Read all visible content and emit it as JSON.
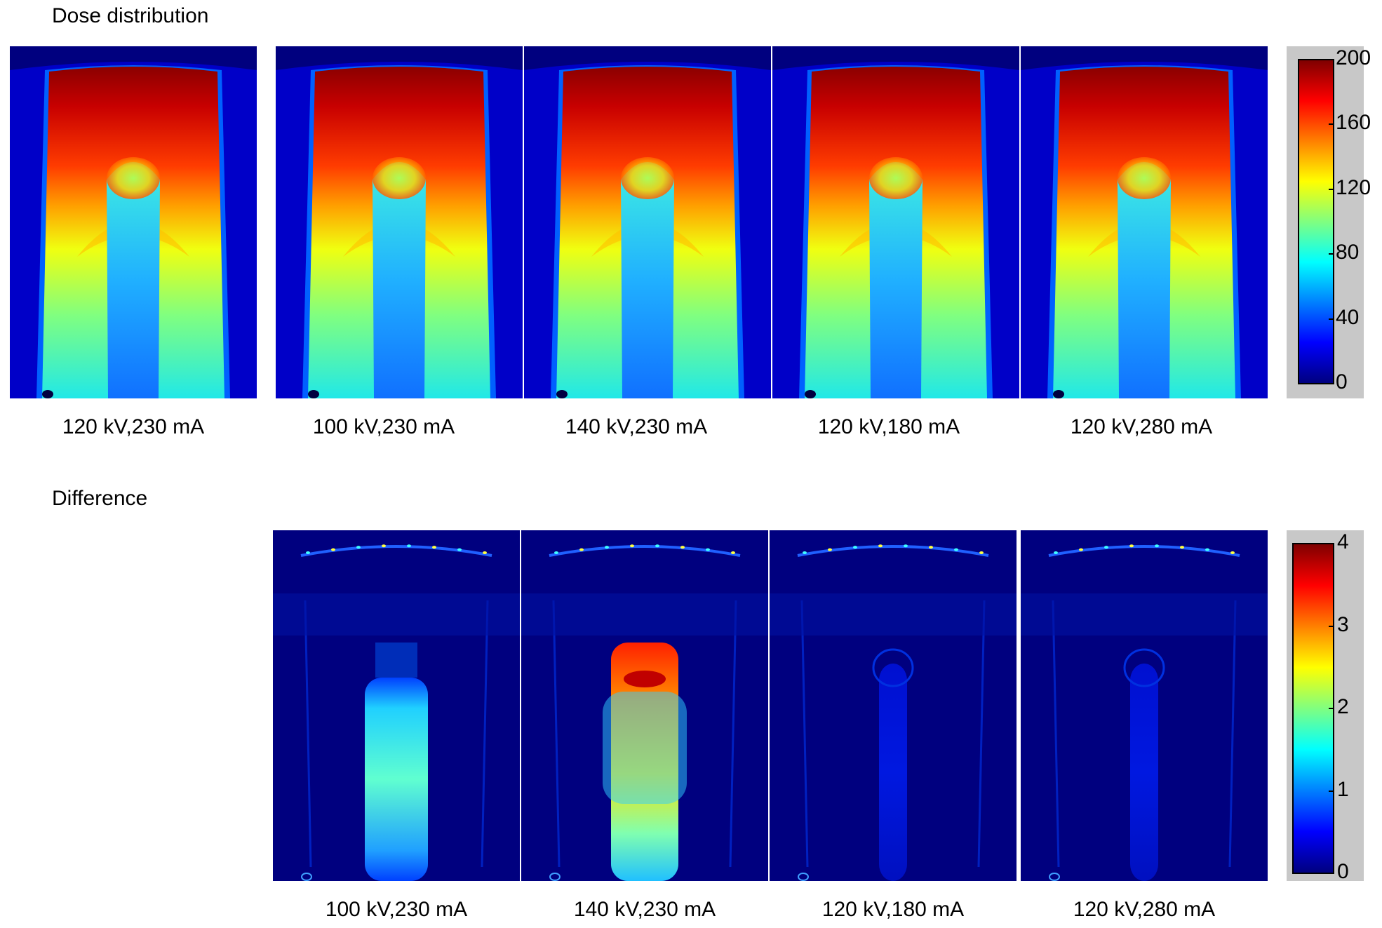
{
  "dose": {
    "title": "Dose distribution",
    "captions": [
      "120 kV,230 mA",
      "100 kV,230 mA",
      "140 kV,230 mA",
      "120 kV,180 mA",
      "120 kV,280 mA"
    ],
    "colorbar": {
      "ticks": [
        "200",
        "160",
        "120",
        "80",
        "40",
        "0"
      ],
      "range": [
        0,
        200
      ]
    }
  },
  "difference": {
    "title": "Difference",
    "captions": [
      "100 kV,230 mA",
      "140 kV,230 mA",
      "120 kV,180 mA",
      "120 kV,280 mA"
    ],
    "colorbar": {
      "ticks": [
        "4",
        "3",
        "2",
        "1",
        "0"
      ],
      "range": [
        0,
        4
      ]
    },
    "column_intensity": [
      0.45,
      0.85,
      0.08,
      0.18
    ]
  },
  "colors": {
    "jet_low": "#00007f",
    "jet_mid": "#00ffff",
    "jet_high": "#7f0000"
  }
}
